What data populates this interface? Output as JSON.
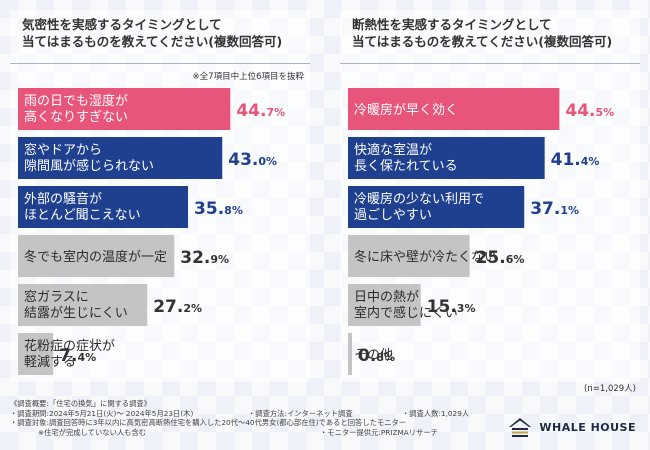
{
  "colors": {
    "pink": "#e8557a",
    "navy": "#1f3f8f",
    "grey": "#c4c4c4",
    "value_pink": "#e8557a",
    "value_navy": "#1f3f8f",
    "value_grey": "#333333"
  },
  "left": {
    "title_line1": "気密性を実感するタイミングとして",
    "title_line2": "当てはまるものを教えてください(複数回答可)",
    "note": "※全7項目中上位6項目を抜粋"
  },
  "right": {
    "title_line1": "断熱性を実感するタイミングとして",
    "title_line2": "当てはまるものを教えてください(複数回答可)"
  },
  "chart_data": [
    {
      "type": "bar",
      "orientation": "horizontal",
      "title": "気密性を実感するタイミングとして当てはまるものを教えてください(複数回答可)",
      "unit": "%",
      "xlim": [
        0,
        100
      ],
      "categories": [
        [
          "雨の日でも湿度が",
          "高くなりすぎない"
        ],
        [
          "窓やドアから",
          "隙間風が感じられない"
        ],
        [
          "外部の騒音が",
          "ほとんど聞こえない"
        ],
        [
          "冬でも室内の温度が一定"
        ],
        [
          "窓ガラスに",
          "結露が生じにくい"
        ],
        [
          "花粉症の症状が",
          "軽減する"
        ]
      ],
      "values": [
        44.7,
        43.0,
        35.8,
        32.9,
        27.2,
        7.4
      ],
      "value_labels": [
        [
          "44.",
          "7"
        ],
        [
          "43.",
          "0"
        ],
        [
          "35.",
          "8"
        ],
        [
          "32.",
          "9"
        ],
        [
          "27.",
          "2"
        ],
        [
          "7.",
          "4"
        ]
      ],
      "styles": [
        "pink",
        "navy",
        "navy",
        "grey",
        "grey",
        "grey"
      ]
    },
    {
      "type": "bar",
      "orientation": "horizontal",
      "title": "断熱性を実感するタイミングとして当てはまるものを教えてください(複数回答可)",
      "unit": "%",
      "xlim": [
        0,
        100
      ],
      "categories": [
        [
          "冷暖房が早く効く"
        ],
        [
          "快適な室温が",
          "長く保たれている"
        ],
        [
          "冷暖房の少ない利用で",
          "過ごしやすい"
        ],
        [
          "冬に床や壁が冷たくない"
        ],
        [
          "日中の熱が",
          "室内で感じにくい"
        ],
        [
          "その他"
        ]
      ],
      "values": [
        44.5,
        41.4,
        37.1,
        25.6,
        15.3,
        0.8
      ],
      "value_labels": [
        [
          "44.",
          "5"
        ],
        [
          "41.",
          "4"
        ],
        [
          "37.",
          "1"
        ],
        [
          "25.",
          "6"
        ],
        [
          "15.",
          "3"
        ],
        [
          "0.",
          "8"
        ]
      ],
      "styles": [
        "pink",
        "navy",
        "navy",
        "grey",
        "grey",
        "grey"
      ]
    }
  ],
  "sample_size": "(n=1,029人)",
  "footnotes": {
    "survey_outline": "《調査概要:「住宅の換気」に関する調査》",
    "period": "・調査期間:2024年5月21日(火)～ 2024年5月23日(木)",
    "method": "・調査方法:インターネット調査",
    "count": "・調査人数:1,029人",
    "target": "・調査対象:調査回答時に3年以内に高気密高断熱住宅を購入した20代～40代男女(都心部在住)であると回答したモニター",
    "note": "※住宅が完成していない人も含む",
    "provider": "・モニター提供元:PRIZMAリサーチ"
  },
  "logo": {
    "text": "WHALE HOUSE",
    "icon": "whale-house-logo-icon"
  }
}
